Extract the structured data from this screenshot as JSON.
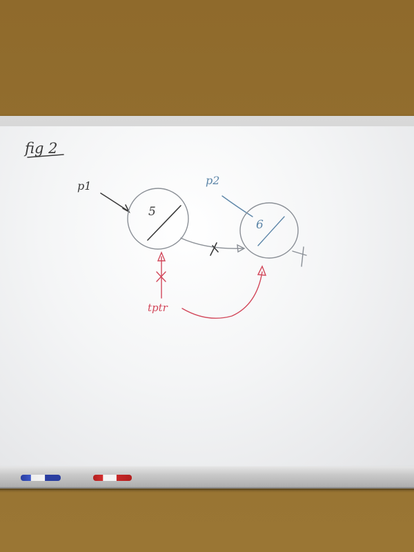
{
  "figure_label": "fig 2",
  "pointer_p1": "p1",
  "pointer_p2": "p2",
  "node1_value": "5",
  "node2_value": "6",
  "temp_pointer": "tptr",
  "colors": {
    "board": "#f4f5f6",
    "wall": "#94702f",
    "black_ink": "#3a3a3a",
    "blue_ink": "#5d86a8",
    "red_ink": "#d2475a"
  }
}
